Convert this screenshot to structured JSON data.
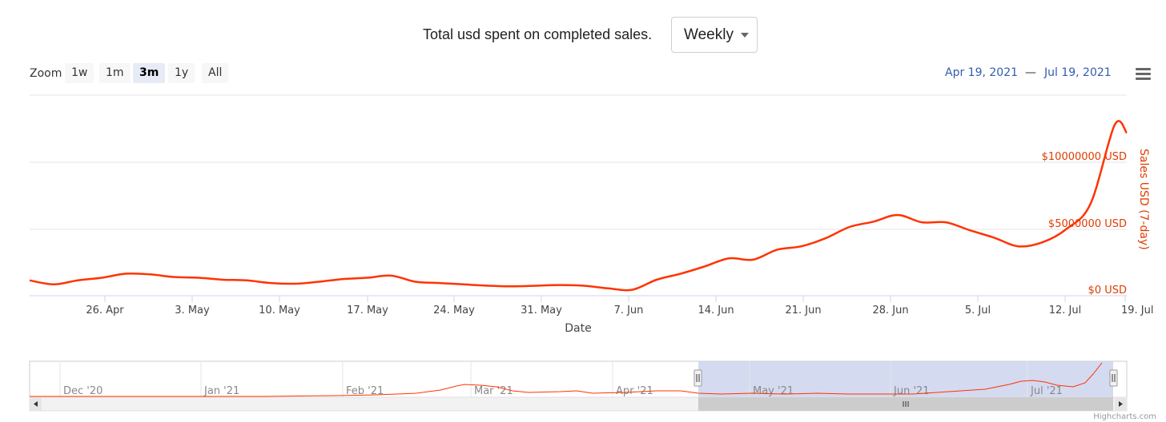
{
  "header": {
    "title": "Total usd spent on completed sales.",
    "period_select": {
      "value": "Weekly"
    }
  },
  "zoom": {
    "label": "Zoom",
    "buttons": [
      {
        "label": "1w",
        "active": false
      },
      {
        "label": "1m",
        "active": false
      },
      {
        "label": "3m",
        "active": true
      },
      {
        "label": "1y",
        "active": false
      },
      {
        "label": "All",
        "active": false
      }
    ]
  },
  "range": {
    "from": "Apr 19, 2021",
    "separator": "—",
    "to": "Jul 19, 2021"
  },
  "credits": "Highcharts.com",
  "colors": {
    "series": "#ff3300",
    "axis_label": "#e03c00",
    "navigator_mask": "#cfd6ee",
    "range_text": "#335cad"
  },
  "icons": {
    "menu": "hamburger-menu-icon",
    "scroll_left": "arrow-left-icon",
    "scroll_right": "arrow-right-icon",
    "grip": "grip-icon"
  },
  "chart_data": {
    "type": "line",
    "title": "Total usd spent on completed sales.",
    "xlabel": "Date",
    "ylabel": "Sales USD (7-day)",
    "x_tick_labels": [
      "26. Apr",
      "3. May",
      "10. May",
      "17. May",
      "24. May",
      "31. May",
      "7. Jun",
      "14. Jun",
      "21. Jun",
      "28. Jun",
      "5. Jul",
      "12. Jul",
      "19. Jul"
    ],
    "y_tick_labels": [
      "$0 USD",
      "$5000000 USD",
      "$10000000 USD"
    ],
    "ylim": [
      0,
      15000000
    ],
    "grid": true,
    "series": [
      {
        "x": [
          "2021-04-19",
          "2021-04-21",
          "2021-04-23",
          "2021-04-25",
          "2021-04-27",
          "2021-04-29",
          "2021-05-01",
          "2021-05-03",
          "2021-05-05",
          "2021-05-07",
          "2021-05-09",
          "2021-05-11",
          "2021-05-13",
          "2021-05-15",
          "2021-05-17",
          "2021-05-19",
          "2021-05-21",
          "2021-05-23",
          "2021-05-25",
          "2021-05-27",
          "2021-05-29",
          "2021-05-31",
          "2021-06-02",
          "2021-06-04",
          "2021-06-06",
          "2021-06-08",
          "2021-06-10",
          "2021-06-12",
          "2021-06-14",
          "2021-06-16",
          "2021-06-18",
          "2021-06-20",
          "2021-06-22",
          "2021-06-24",
          "2021-06-26",
          "2021-06-28",
          "2021-06-30",
          "2021-07-02",
          "2021-07-04",
          "2021-07-06",
          "2021-07-08",
          "2021-07-10",
          "2021-07-12",
          "2021-07-14",
          "2021-07-16",
          "2021-07-18",
          "2021-07-19"
        ],
        "values": [
          1150000,
          850000,
          1150000,
          1350000,
          1650000,
          1600000,
          1400000,
          1350000,
          1200000,
          1150000,
          950000,
          900000,
          1050000,
          1250000,
          1350000,
          1500000,
          1050000,
          950000,
          850000,
          750000,
          700000,
          750000,
          800000,
          750000,
          550000,
          450000,
          1200000,
          1650000,
          2200000,
          2800000,
          2700000,
          3450000,
          3700000,
          4300000,
          5150000,
          5550000,
          6050000,
          5500000,
          5500000,
          4900000,
          4350000,
          3700000,
          4000000,
          5000000,
          6900000,
          12800000,
          12200000
        ]
      }
    ],
    "navigator": {
      "x_tick_labels": [
        "Dec '20",
        "Jan '21",
        "Feb '21",
        "Mar '21",
        "Apr '21",
        "May '21",
        "Jun '21",
        "Jul '21"
      ],
      "selected_range": [
        "Apr 19, 2021",
        "Jul 19, 2021"
      ]
    }
  }
}
